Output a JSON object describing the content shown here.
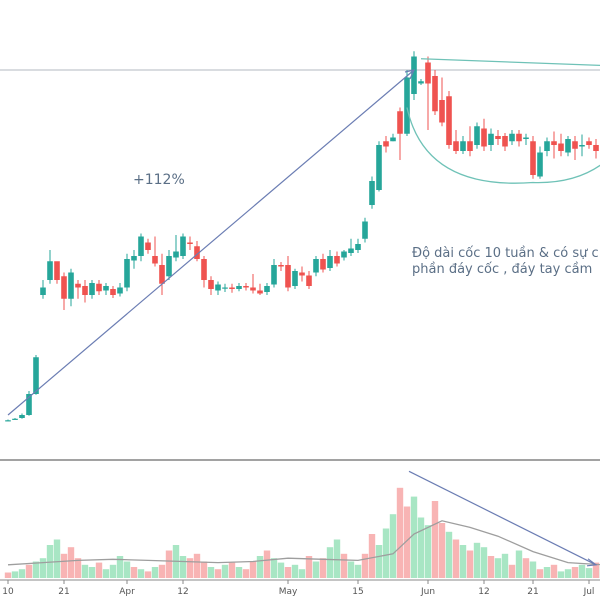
{
  "colors": {
    "up": "#26a69a",
    "down": "#ef5350",
    "vol_up": "#a8e6c4",
    "vol_down": "#f8b4b4",
    "trend": "#6b7db3",
    "cup": "#6fc2b7",
    "ma": "#9e9e9e",
    "ref": "#9aa3ad"
  },
  "annotations": {
    "gain": "+112%",
    "note_line1": "Độ dài cốc 10 tuần & có sự c",
    "note_line2": "phần đáy cốc , đáy tay cầm"
  },
  "chart_data": {
    "type": "candlestick",
    "title": "",
    "xlabel": "",
    "ylabel": "",
    "x_ticks": [
      "10",
      "21",
      "Apr",
      "12",
      "May",
      "15",
      "Jun",
      "12",
      "21",
      "Jul"
    ],
    "ylim": [
      0,
      560
    ],
    "candles": [
      [
        13,
        13,
        14,
        12
      ],
      [
        15,
        15,
        16,
        14
      ],
      [
        16,
        20,
        22,
        15
      ],
      [
        20,
        48,
        52,
        19
      ],
      [
        48,
        97,
        100,
        47
      ],
      [
        180,
        190,
        200,
        175
      ],
      [
        200,
        225,
        240,
        195
      ],
      [
        225,
        200,
        215,
        195
      ],
      [
        205,
        175,
        210,
        160
      ],
      [
        175,
        210,
        215,
        165
      ],
      [
        195,
        190,
        200,
        175
      ],
      [
        192,
        180,
        200,
        170
      ],
      [
        180,
        196,
        200,
        175
      ],
      [
        195,
        185,
        200,
        180
      ],
      [
        186,
        192,
        196,
        180
      ],
      [
        188,
        180,
        192,
        176
      ],
      [
        182,
        190,
        196,
        178
      ],
      [
        190,
        228,
        235,
        185
      ],
      [
        226,
        232,
        240,
        215
      ],
      [
        232,
        258,
        262,
        225
      ],
      [
        250,
        240,
        255,
        235
      ],
      [
        232,
        222,
        258,
        218
      ],
      [
        220,
        195,
        235,
        180
      ],
      [
        205,
        232,
        240,
        200
      ],
      [
        230,
        238,
        260,
        225
      ],
      [
        232,
        258,
        262,
        228
      ],
      [
        250,
        248,
        258,
        240
      ],
      [
        245,
        228,
        252,
        225
      ],
      [
        228,
        200,
        232,
        190
      ],
      [
        200,
        188,
        205,
        180
      ],
      [
        186,
        194,
        198,
        180
      ],
      [
        190,
        190,
        195,
        184
      ],
      [
        190,
        188,
        195,
        183
      ],
      [
        188,
        192,
        196,
        185
      ],
      [
        192,
        190,
        196,
        186
      ],
      [
        190,
        186,
        208,
        182
      ],
      [
        186,
        182,
        195,
        180
      ],
      [
        184,
        192,
        196,
        180
      ],
      [
        194,
        220,
        228,
        190
      ],
      [
        220,
        218,
        224,
        212
      ],
      [
        220,
        190,
        232,
        185
      ],
      [
        192,
        212,
        215,
        188
      ],
      [
        210,
        206,
        218,
        198
      ],
      [
        206,
        192,
        212,
        188
      ],
      [
        210,
        228,
        232,
        205
      ],
      [
        228,
        214,
        235,
        210
      ],
      [
        216,
        232,
        240,
        212
      ],
      [
        232,
        222,
        238,
        218
      ],
      [
        230,
        238,
        240,
        226
      ],
      [
        236,
        242,
        255,
        232
      ],
      [
        240,
        248,
        255,
        236
      ],
      [
        255,
        278,
        283,
        250
      ],
      [
        300,
        332,
        338,
        295
      ],
      [
        320,
        380,
        385,
        318
      ],
      [
        385,
        378,
        392,
        370
      ],
      [
        385,
        390,
        395,
        385
      ],
      [
        425,
        395,
        430,
        360
      ],
      [
        395,
        470,
        480,
        392
      ],
      [
        448,
        498,
        505,
        440
      ],
      [
        462,
        465,
        468,
        460
      ],
      [
        490,
        462,
        498,
        400
      ],
      [
        472,
        425,
        480,
        420
      ],
      [
        440,
        410,
        470,
        405
      ],
      [
        445,
        380,
        452,
        375
      ],
      [
        385,
        372,
        400,
        368
      ],
      [
        372,
        385,
        392,
        368
      ],
      [
        385,
        372,
        405,
        365
      ],
      [
        380,
        405,
        410,
        375
      ],
      [
        402,
        378,
        415,
        372
      ],
      [
        380,
        395,
        402,
        372
      ],
      [
        392,
        388,
        400,
        380
      ],
      [
        392,
        378,
        396,
        372
      ],
      [
        385,
        395,
        400,
        380
      ],
      [
        395,
        385,
        400,
        378
      ],
      [
        388,
        390,
        395,
        380
      ],
      [
        385,
        340,
        392,
        335
      ],
      [
        338,
        370,
        378,
        335
      ],
      [
        372,
        385,
        390,
        365
      ],
      [
        385,
        380,
        398,
        362
      ],
      [
        382,
        372,
        395,
        365
      ],
      [
        370,
        388,
        392,
        365
      ],
      [
        385,
        375,
        392,
        360
      ],
      [
        378,
        380,
        394,
        365
      ],
      [
        385,
        380,
        390,
        375
      ],
      [
        380,
        372,
        388,
        362
      ],
      [
        372,
        385,
        392,
        368
      ],
      [
        382,
        372,
        388,
        360
      ],
      [
        375,
        395,
        400,
        370
      ]
    ],
    "reference_level": 480,
    "trend_rise_start": [
      0,
      20
    ],
    "trend_rise_end": [
      58,
      480
    ],
    "handle_line_start": [
      59,
      495
    ],
    "handle_line_end": [
      88,
      485
    ],
    "cup_start": [
      57,
      430
    ],
    "cup_bottom": [
      75,
      330
    ],
    "cup_end": [
      88,
      385
    ],
    "volume_ylim": [
      0,
      100
    ],
    "volume": [
      [
        5,
        -1
      ],
      [
        6,
        1
      ],
      [
        8,
        1
      ],
      [
        12,
        -1
      ],
      [
        15,
        1
      ],
      [
        18,
        1
      ],
      [
        30,
        1
      ],
      [
        35,
        1
      ],
      [
        22,
        -1
      ],
      [
        28,
        -1
      ],
      [
        18,
        -1
      ],
      [
        12,
        1
      ],
      [
        10,
        1
      ],
      [
        14,
        -1
      ],
      [
        8,
        1
      ],
      [
        12,
        1
      ],
      [
        20,
        1
      ],
      [
        15,
        1
      ],
      [
        10,
        -1
      ],
      [
        8,
        1
      ],
      [
        6,
        -1
      ],
      [
        10,
        1
      ],
      [
        12,
        -1
      ],
      [
        25,
        -1
      ],
      [
        30,
        1
      ],
      [
        20,
        1
      ],
      [
        18,
        -1
      ],
      [
        22,
        -1
      ],
      [
        15,
        -1
      ],
      [
        10,
        1
      ],
      [
        8,
        -1
      ],
      [
        12,
        1
      ],
      [
        14,
        -1
      ],
      [
        10,
        1
      ],
      [
        8,
        -1
      ],
      [
        15,
        -1
      ],
      [
        20,
        1
      ],
      [
        25,
        -1
      ],
      [
        18,
        1
      ],
      [
        14,
        1
      ],
      [
        10,
        -1
      ],
      [
        12,
        1
      ],
      [
        8,
        1
      ],
      [
        20,
        -1
      ],
      [
        15,
        1
      ],
      [
        18,
        -1
      ],
      [
        28,
        1
      ],
      [
        35,
        1
      ],
      [
        22,
        -1
      ],
      [
        15,
        1
      ],
      [
        12,
        1
      ],
      [
        22,
        -1
      ],
      [
        40,
        -1
      ],
      [
        30,
        1
      ],
      [
        45,
        1
      ],
      [
        58,
        1
      ],
      [
        82,
        -1
      ],
      [
        65,
        -1
      ],
      [
        74,
        1
      ],
      [
        55,
        1
      ],
      [
        48,
        1
      ],
      [
        70,
        -1
      ],
      [
        50,
        -1
      ],
      [
        42,
        1
      ],
      [
        35,
        -1
      ],
      [
        30,
        1
      ],
      [
        25,
        -1
      ],
      [
        32,
        1
      ],
      [
        28,
        1
      ],
      [
        20,
        -1
      ],
      [
        18,
        1
      ],
      [
        22,
        1
      ],
      [
        12,
        -1
      ],
      [
        25,
        1
      ],
      [
        18,
        -1
      ],
      [
        15,
        1
      ],
      [
        8,
        -1
      ],
      [
        10,
        1
      ],
      [
        12,
        -1
      ],
      [
        6,
        1
      ],
      [
        8,
        1
      ],
      [
        10,
        -1
      ],
      [
        12,
        1
      ],
      [
        9,
        1
      ],
      [
        14,
        -1
      ],
      [
        11,
        1
      ],
      [
        8,
        1
      ],
      [
        15,
        1
      ]
    ],
    "volume_ma": [
      [
        0,
        12
      ],
      [
        5,
        14
      ],
      [
        10,
        16
      ],
      [
        15,
        17
      ],
      [
        20,
        16
      ],
      [
        25,
        15
      ],
      [
        30,
        14
      ],
      [
        35,
        15
      ],
      [
        40,
        18
      ],
      [
        45,
        17
      ],
      [
        50,
        16
      ],
      [
        55,
        22
      ],
      [
        58,
        40
      ],
      [
        62,
        52
      ],
      [
        66,
        46
      ],
      [
        70,
        38
      ],
      [
        75,
        24
      ],
      [
        80,
        14
      ],
      [
        85,
        12
      ],
      [
        88,
        11
      ]
    ],
    "volume_trend_start": [
      58,
      97
    ],
    "volume_trend_end": [
      84,
      12
    ]
  }
}
